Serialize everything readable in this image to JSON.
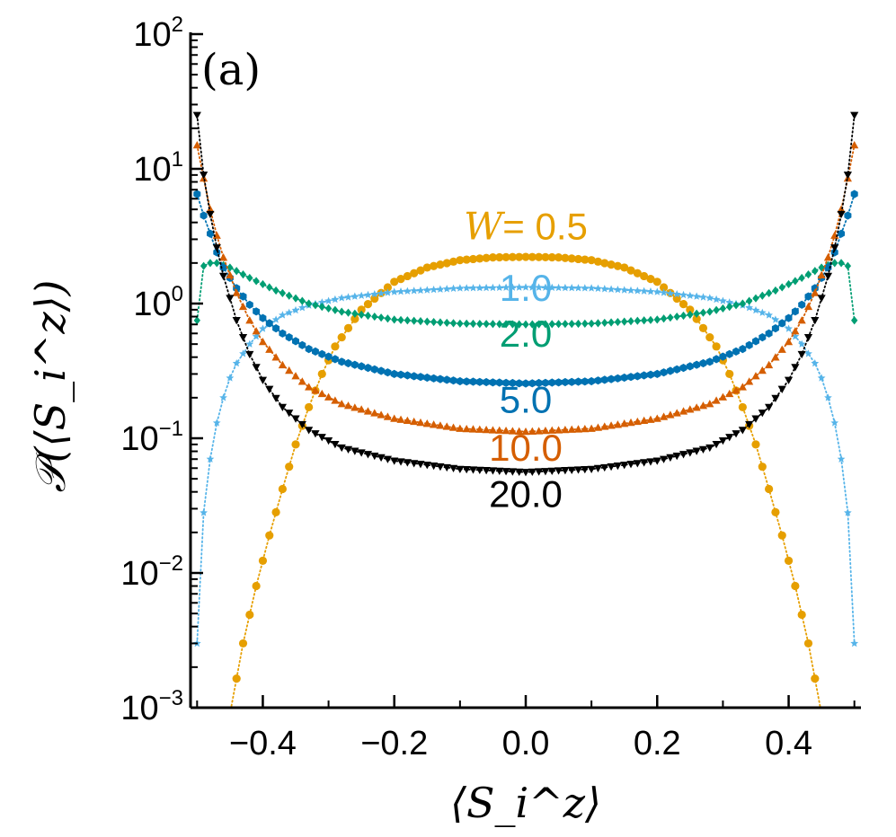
{
  "chart_data": {
    "type": "line",
    "panel_label": "(a)",
    "xlabel": "⟨S_i^z⟩",
    "ylabel": "𝒫(⟨S_i^z⟩)",
    "xlim": [
      -0.51,
      0.51
    ],
    "ylim": [
      0.001,
      100
    ],
    "yscale": "log",
    "x_ticks": [
      {
        "value": -0.4,
        "label": "−0.4"
      },
      {
        "value": -0.2,
        "label": "−0.2"
      },
      {
        "value": 0.0,
        "label": "0.0"
      },
      {
        "value": 0.2,
        "label": "0.2"
      },
      {
        "value": 0.4,
        "label": "0.4"
      }
    ],
    "y_ticks": [
      {
        "value": 100,
        "base": "10",
        "exp": "2"
      },
      {
        "value": 10,
        "base": "10",
        "exp": "1"
      },
      {
        "value": 1,
        "base": "10",
        "exp": "0"
      },
      {
        "value": 0.1,
        "base": "10",
        "exp": "−1"
      },
      {
        "value": 0.01,
        "base": "10",
        "exp": "−2"
      },
      {
        "value": 0.001,
        "base": "10",
        "exp": "−3"
      }
    ],
    "series": [
      {
        "name": "W = 0.5",
        "label_prefix": "W",
        "label_value": "= 0.5",
        "color": "#E69F00",
        "marker": "circle",
        "label_at": {
          "x": 0.0,
          "y": 3.0
        },
        "x": [
          -0.45,
          -0.43,
          -0.41,
          -0.39,
          -0.37,
          -0.35,
          -0.33,
          -0.31,
          -0.29,
          -0.25,
          -0.2,
          -0.15,
          -0.1,
          -0.05,
          0.0,
          0.05,
          0.1,
          0.15,
          0.2,
          0.25,
          0.29,
          0.31,
          0.33,
          0.35,
          0.37,
          0.39,
          0.41,
          0.43,
          0.45
        ],
        "y": [
          0.0009,
          0.003,
          0.008,
          0.019,
          0.042,
          0.09,
          0.17,
          0.3,
          0.48,
          0.9,
          1.45,
          1.85,
          2.1,
          2.2,
          2.22,
          2.2,
          2.1,
          1.85,
          1.45,
          0.9,
          0.48,
          0.3,
          0.17,
          0.09,
          0.042,
          0.019,
          0.008,
          0.003,
          0.0009
        ]
      },
      {
        "name": "1.0",
        "label_prefix": "",
        "label_value": "1.0",
        "color": "#56B4E9",
        "marker": "star",
        "label_at": {
          "x": 0.0,
          "y": 1.05
        },
        "x": [
          -0.5,
          -0.49,
          -0.48,
          -0.47,
          -0.46,
          -0.45,
          -0.44,
          -0.42,
          -0.4,
          -0.37,
          -0.33,
          -0.28,
          -0.2,
          -0.1,
          0.0,
          0.1,
          0.2,
          0.28,
          0.33,
          0.37,
          0.4,
          0.42,
          0.44,
          0.45,
          0.46,
          0.47,
          0.48,
          0.49,
          0.5
        ],
        "y": [
          0.003,
          0.028,
          0.07,
          0.13,
          0.2,
          0.28,
          0.36,
          0.5,
          0.65,
          0.82,
          0.97,
          1.1,
          1.22,
          1.3,
          1.32,
          1.3,
          1.22,
          1.1,
          0.97,
          0.82,
          0.65,
          0.5,
          0.36,
          0.28,
          0.2,
          0.13,
          0.07,
          0.028,
          0.003
        ]
      },
      {
        "name": "2.0",
        "label_prefix": "",
        "label_value": "2.0",
        "color": "#009E73",
        "marker": "diamond",
        "label_at": {
          "x": 0.0,
          "y": 0.48
        },
        "x": [
          -0.5,
          -0.49,
          -0.48,
          -0.47,
          -0.45,
          -0.42,
          -0.38,
          -0.33,
          -0.28,
          -0.2,
          -0.1,
          0.0,
          0.1,
          0.2,
          0.28,
          0.33,
          0.38,
          0.42,
          0.45,
          0.47,
          0.48,
          0.49,
          0.5
        ],
        "y": [
          0.75,
          1.9,
          2.0,
          2.0,
          1.85,
          1.55,
          1.25,
          1.0,
          0.87,
          0.76,
          0.71,
          0.7,
          0.71,
          0.76,
          0.87,
          1.0,
          1.25,
          1.55,
          1.85,
          2.0,
          2.0,
          1.9,
          0.75
        ]
      },
      {
        "name": "5.0",
        "label_prefix": "",
        "label_value": "5.0",
        "color": "#0072B2",
        "marker": "hexagon",
        "label_at": {
          "x": 0.0,
          "y": 0.155
        },
        "x": [
          -0.5,
          -0.49,
          -0.48,
          -0.47,
          -0.46,
          -0.44,
          -0.42,
          -0.4,
          -0.37,
          -0.33,
          -0.28,
          -0.2,
          -0.1,
          0.0,
          0.1,
          0.2,
          0.28,
          0.33,
          0.37,
          0.4,
          0.42,
          0.44,
          0.46,
          0.47,
          0.48,
          0.49,
          0.5
        ],
        "y": [
          6.5,
          4.5,
          3.3,
          2.4,
          1.85,
          1.3,
          0.98,
          0.78,
          0.6,
          0.46,
          0.37,
          0.3,
          0.265,
          0.255,
          0.265,
          0.3,
          0.37,
          0.46,
          0.6,
          0.78,
          0.98,
          1.3,
          1.85,
          2.4,
          3.3,
          4.5,
          6.5
        ]
      },
      {
        "name": "10.0",
        "label_prefix": "",
        "label_value": "10.0",
        "color": "#D55E00",
        "marker": "triangle-up",
        "label_at": {
          "x": 0.0,
          "y": 0.068
        },
        "x": [
          -0.5,
          -0.49,
          -0.48,
          -0.47,
          -0.46,
          -0.44,
          -0.42,
          -0.4,
          -0.37,
          -0.33,
          -0.28,
          -0.2,
          -0.1,
          0.0,
          0.1,
          0.2,
          0.28,
          0.33,
          0.37,
          0.4,
          0.42,
          0.44,
          0.46,
          0.47,
          0.48,
          0.49,
          0.5
        ],
        "y": [
          15,
          8.5,
          5,
          3.2,
          2.2,
          1.2,
          0.75,
          0.52,
          0.35,
          0.24,
          0.18,
          0.14,
          0.118,
          0.112,
          0.118,
          0.14,
          0.18,
          0.24,
          0.35,
          0.52,
          0.75,
          1.2,
          2.2,
          3.2,
          5,
          8.5,
          15
        ]
      },
      {
        "name": "20.0",
        "label_prefix": "",
        "label_value": "20.0",
        "color": "#000000",
        "marker": "triangle-down",
        "label_at": {
          "x": 0.0,
          "y": 0.031
        },
        "x": [
          -0.5,
          -0.49,
          -0.48,
          -0.47,
          -0.46,
          -0.44,
          -0.42,
          -0.4,
          -0.37,
          -0.33,
          -0.28,
          -0.2,
          -0.1,
          0.0,
          0.1,
          0.2,
          0.28,
          0.33,
          0.37,
          0.4,
          0.42,
          0.44,
          0.46,
          0.47,
          0.48,
          0.49,
          0.5
        ],
        "y": [
          25,
          9,
          4.6,
          2.6,
          1.6,
          0.75,
          0.42,
          0.27,
          0.17,
          0.115,
          0.085,
          0.068,
          0.059,
          0.056,
          0.059,
          0.068,
          0.085,
          0.115,
          0.17,
          0.27,
          0.42,
          0.75,
          1.6,
          2.6,
          4.6,
          9,
          25
        ]
      }
    ]
  }
}
